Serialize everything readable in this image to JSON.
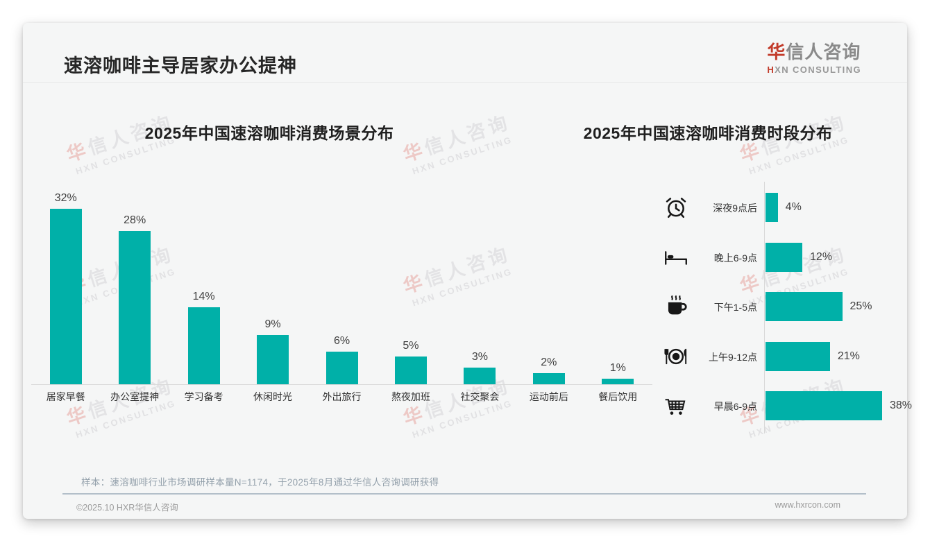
{
  "header": {
    "title": "速溶咖啡主导居家办公提神",
    "logo": {
      "cn_accent": "华",
      "cn_rest": "信人咨询",
      "en_accent": "H",
      "en_rest": "XN CONSULTING"
    }
  },
  "watermark": {
    "line1_accent": "华",
    "line1_rest": "信人咨询",
    "line2": "HXN CONSULTING"
  },
  "footer": {
    "note": "样本：速溶咖啡行业市场调研样本量N=1174，于2025年8月通过华信人咨询调研获得",
    "copyright": "©2025.10 HXR华信人咨询",
    "website": "www.hxrcon.com"
  },
  "colors": {
    "bar_teal": "#00b0a8",
    "accent_red": "#c23b2a",
    "title_text": "#262626",
    "axis_gray": "#d9d9d9"
  },
  "chart_data": [
    {
      "type": "bar",
      "orientation": "vertical",
      "title": "2025年中国速溶咖啡消费场景分布",
      "unit": "%",
      "ylim": [
        0,
        35
      ],
      "categories": [
        "居家早餐",
        "办公室提神",
        "学习备考",
        "休闲时光",
        "外出旅行",
        "熬夜加班",
        "社交聚会",
        "运动前后",
        "餐后饮用"
      ],
      "values": [
        32,
        28,
        14,
        9,
        6,
        5,
        3,
        2,
        1
      ],
      "data_labels": [
        "32%",
        "28%",
        "14%",
        "9%",
        "6%",
        "5%",
        "3%",
        "2%",
        "1%"
      ]
    },
    {
      "type": "bar",
      "orientation": "horizontal",
      "title": "2025年中国速溶咖啡消费时段分布",
      "unit": "%",
      "xlim": [
        0,
        40
      ],
      "categories": [
        "深夜9点后",
        "晚上6-9点",
        "下午1-5点",
        "上午9-12点",
        "早晨6-9点"
      ],
      "values": [
        4,
        12,
        25,
        21,
        38
      ],
      "data_labels": [
        "4%",
        "12%",
        "25%",
        "21%",
        "38%"
      ],
      "icons": [
        "alarm-clock",
        "bed",
        "coffee-cup",
        "plate-cutlery",
        "shopping-cart"
      ]
    }
  ]
}
